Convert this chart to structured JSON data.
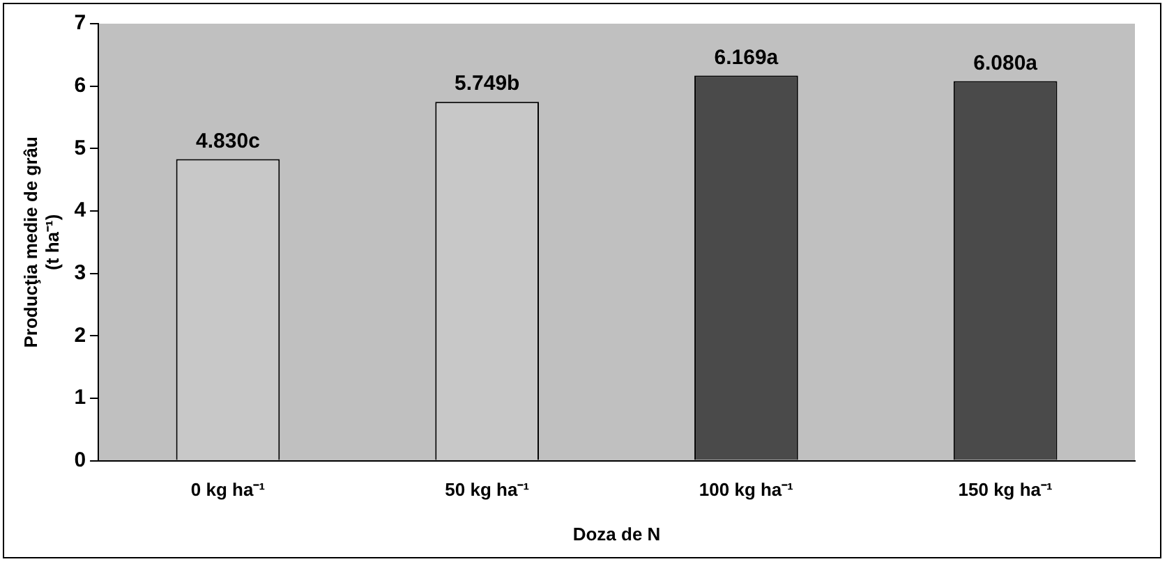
{
  "chart_data": {
    "type": "bar",
    "categories": [
      "0 kg ha⁻¹",
      "50 kg ha⁻¹",
      "100 kg ha⁻¹",
      "150 kg ha⁻¹"
    ],
    "values": [
      4.83,
      5.749,
      6.169,
      6.08
    ],
    "value_labels": [
      "4.830c",
      "5.749b",
      "6.169a",
      "6.080a"
    ],
    "colors": [
      "#c8c8c8",
      "#c8c8c8",
      "#4a4a4a",
      "#4a4a4a"
    ],
    "xlabel": "Doza de N",
    "ylabel": "Producţia medie de grâu\n(t ha⁻¹)",
    "ylim": [
      0,
      7
    ],
    "yticks": [
      0,
      1,
      2,
      3,
      4,
      5,
      6,
      7
    ],
    "grid": false,
    "legend": false
  }
}
